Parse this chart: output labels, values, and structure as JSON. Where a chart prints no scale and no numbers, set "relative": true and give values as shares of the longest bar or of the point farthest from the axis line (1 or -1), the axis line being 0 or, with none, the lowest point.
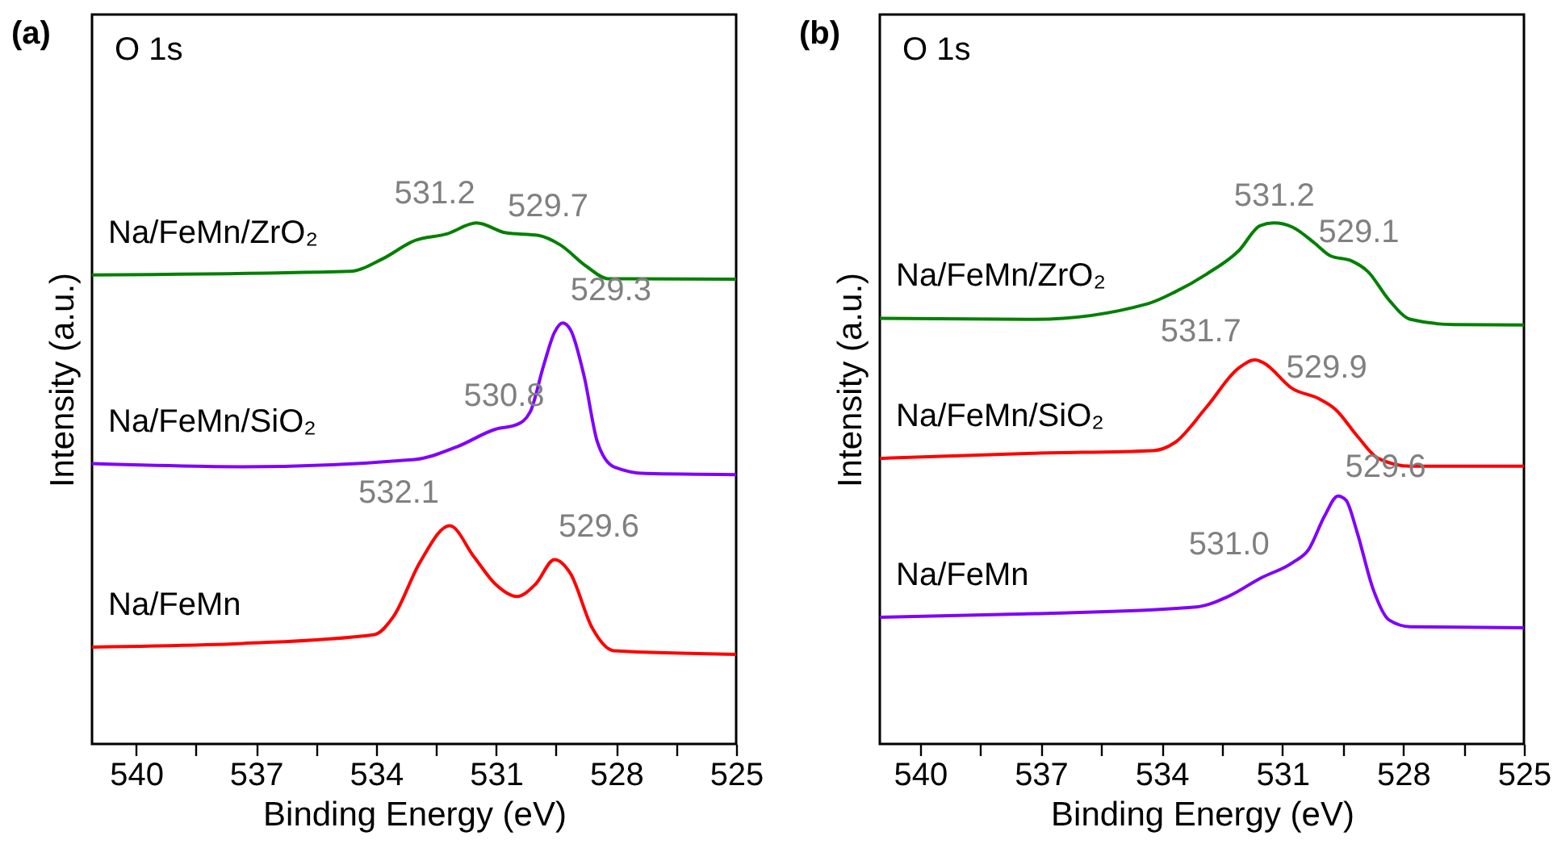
{
  "chart_data": [
    {
      "type": "line",
      "title": "(a)",
      "xlabel": "Binding Energy (eV)",
      "ylabel": "Intensity (a.u.)",
      "relative": true,
      "xlim": [
        541.1,
        525
      ],
      "xticks": [
        540,
        {
          "value": 538.5,
          "label": null
        },
        537,
        {
          "value": 535.5,
          "label": null
        },
        534,
        {
          "value": 532.5,
          "label": null
        },
        531,
        {
          "value": 529.5,
          "label": null
        },
        528,
        {
          "value": 526.5,
          "label": null
        },
        525
      ],
      "series": [
        {
          "name": "Na/FeMn/ZrO₂",
          "color": "#008000",
          "x": [
            541.1,
            534.65,
            533.84,
            533.04,
            532.23,
            531.49,
            530.75,
            529.94,
            529.4,
            528.73,
            528.2,
            525.0
          ],
          "values": [
            0.9,
            0.907,
            0.931,
            0.966,
            0.979,
            1.0,
            0.981,
            0.976,
            0.958,
            0.916,
            0.893,
            0.892
          ]
        },
        {
          "name": "Na/FeMn/SiO₂",
          "color": "#7f00ff",
          "x": [
            541.1,
            537.34,
            533.04,
            531.96,
            531.02,
            530.48,
            530.15,
            529.81,
            529.54,
            529.34,
            529.14,
            528.8,
            528.47,
            528.06,
            527.26,
            525.0
          ],
          "values": [
            0.538,
            0.532,
            0.546,
            0.571,
            0.604,
            0.613,
            0.637,
            0.727,
            0.79,
            0.808,
            0.795,
            0.706,
            0.58,
            0.532,
            0.519,
            0.517
          ]
        },
        {
          "name": "Na/FeMn",
          "color": "#ff0000",
          "x": [
            541.1,
            537.34,
            534.04,
            533.57,
            532.9,
            532.16,
            531.55,
            531.02,
            530.48,
            530.01,
            529.54,
            529.14,
            528.6,
            528.06,
            525.0
          ],
          "values": [
            0.186,
            0.193,
            0.21,
            0.244,
            0.349,
            0.419,
            0.359,
            0.307,
            0.283,
            0.307,
            0.354,
            0.327,
            0.223,
            0.179,
            0.172
          ]
        }
      ],
      "annotations": [
        "O 1s",
        {
          "text": "531.2",
          "x": 531.2,
          "y": 0.994
        },
        {
          "text": "529.7",
          "x": 529.7,
          "y": 0.969
        },
        {
          "text": "529.3",
          "x": 529.3,
          "y": 0.808
        },
        {
          "text": "530.8",
          "x": 530.8,
          "y": 0.606
        },
        {
          "text": "532.1",
          "x": 532.1,
          "y": 0.42
        },
        {
          "text": "529.6",
          "x": 529.6,
          "y": 0.355
        }
      ]
    },
    {
      "type": "line",
      "title": "(b)",
      "xlabel": "Binding Energy (eV)",
      "ylabel": "Intensity (a.u.)",
      "relative": true,
      "xlim": [
        541.0,
        525
      ],
      "xticks": [
        540,
        {
          "value": 538.5,
          "label": null
        },
        537,
        {
          "value": 535.5,
          "label": null
        },
        534,
        {
          "value": 532.5,
          "label": null
        },
        531,
        {
          "value": 529.5,
          "label": null
        },
        528,
        {
          "value": 526.5,
          "label": null
        },
        525
      ],
      "series": [
        {
          "name": "Na/FeMn/ZrO₂",
          "color": "#008000",
          "x": [
            541.0,
            537.14,
            534.34,
            533.68,
            532.88,
            532.08,
            531.55,
            531.21,
            530.75,
            530.21,
            529.81,
            529.28,
            528.88,
            528.35,
            527.82,
            526.75,
            525.0
          ],
          "values": [
            0.817,
            0.815,
            0.845,
            0.867,
            0.902,
            0.947,
            0.995,
            1.0,
            0.992,
            0.962,
            0.937,
            0.927,
            0.907,
            0.852,
            0.815,
            0.805,
            0.804
          ]
        },
        {
          "name": "Na/FeMn/SiO₂",
          "color": "#ff0000",
          "x": [
            541.0,
            537.14,
            534.21,
            533.68,
            532.88,
            532.08,
            531.68,
            531.48,
            530.75,
            530.08,
            529.68,
            529.15,
            528.62,
            527.82,
            525.0
          ],
          "values": [
            0.548,
            0.558,
            0.563,
            0.578,
            0.647,
            0.722,
            0.737,
            0.732,
            0.682,
            0.662,
            0.642,
            0.592,
            0.548,
            0.533,
            0.533
          ]
        },
        {
          "name": "Na/FeMn",
          "color": "#7f00ff",
          "x": [
            541.0,
            537.14,
            533.14,
            532.35,
            531.55,
            530.75,
            530.35,
            529.95,
            529.62,
            529.42,
            529.15,
            528.75,
            528.35,
            527.82,
            525.0
          ],
          "values": [
            0.243,
            0.25,
            0.263,
            0.283,
            0.318,
            0.348,
            0.373,
            0.438,
            0.476,
            0.468,
            0.408,
            0.298,
            0.238,
            0.225,
            0.223
          ]
        }
      ],
      "annotations": [
        "O 1s",
        {
          "text": "531.2",
          "x": 531.2,
          "y": 0.99
        },
        {
          "text": "529.1",
          "x": 529.1,
          "y": 0.92
        },
        {
          "text": "531.7",
          "x": 531.7,
          "y": 0.73
        },
        {
          "text": "529.9",
          "x": 529.9,
          "y": 0.66
        },
        {
          "text": "531.0",
          "x": 531.0,
          "y": 0.32
        },
        {
          "text": "529.6",
          "x": 529.6,
          "y": 0.47
        }
      ]
    }
  ]
}
